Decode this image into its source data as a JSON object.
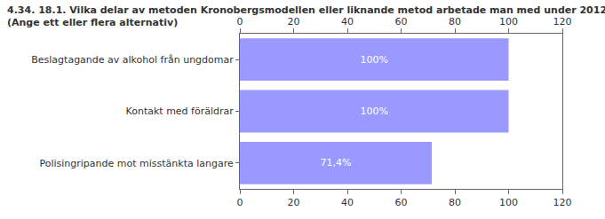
{
  "chart_data": {
    "type": "bar",
    "orientation": "horizontal",
    "title": [
      "4.34. 18.1. Vilka delar av metoden Kronobergsmodellen eller liknande metod arbetade man med under 2012?",
      "(Ange ett eller flera alternativ)"
    ],
    "categories": [
      "Beslagtagande av alkohol från ungdomar",
      "Kontakt med föräldrar",
      "Polisingripande mot misstänkta langare"
    ],
    "values": [
      100,
      100,
      71.4
    ],
    "value_labels": [
      "100%",
      "100%",
      "71,4%"
    ],
    "data_labels": true,
    "color": "#9999ff",
    "xlim": [
      0,
      120
    ],
    "xticks": [
      0,
      20,
      40,
      60,
      80,
      100,
      120
    ],
    "grid": false
  }
}
